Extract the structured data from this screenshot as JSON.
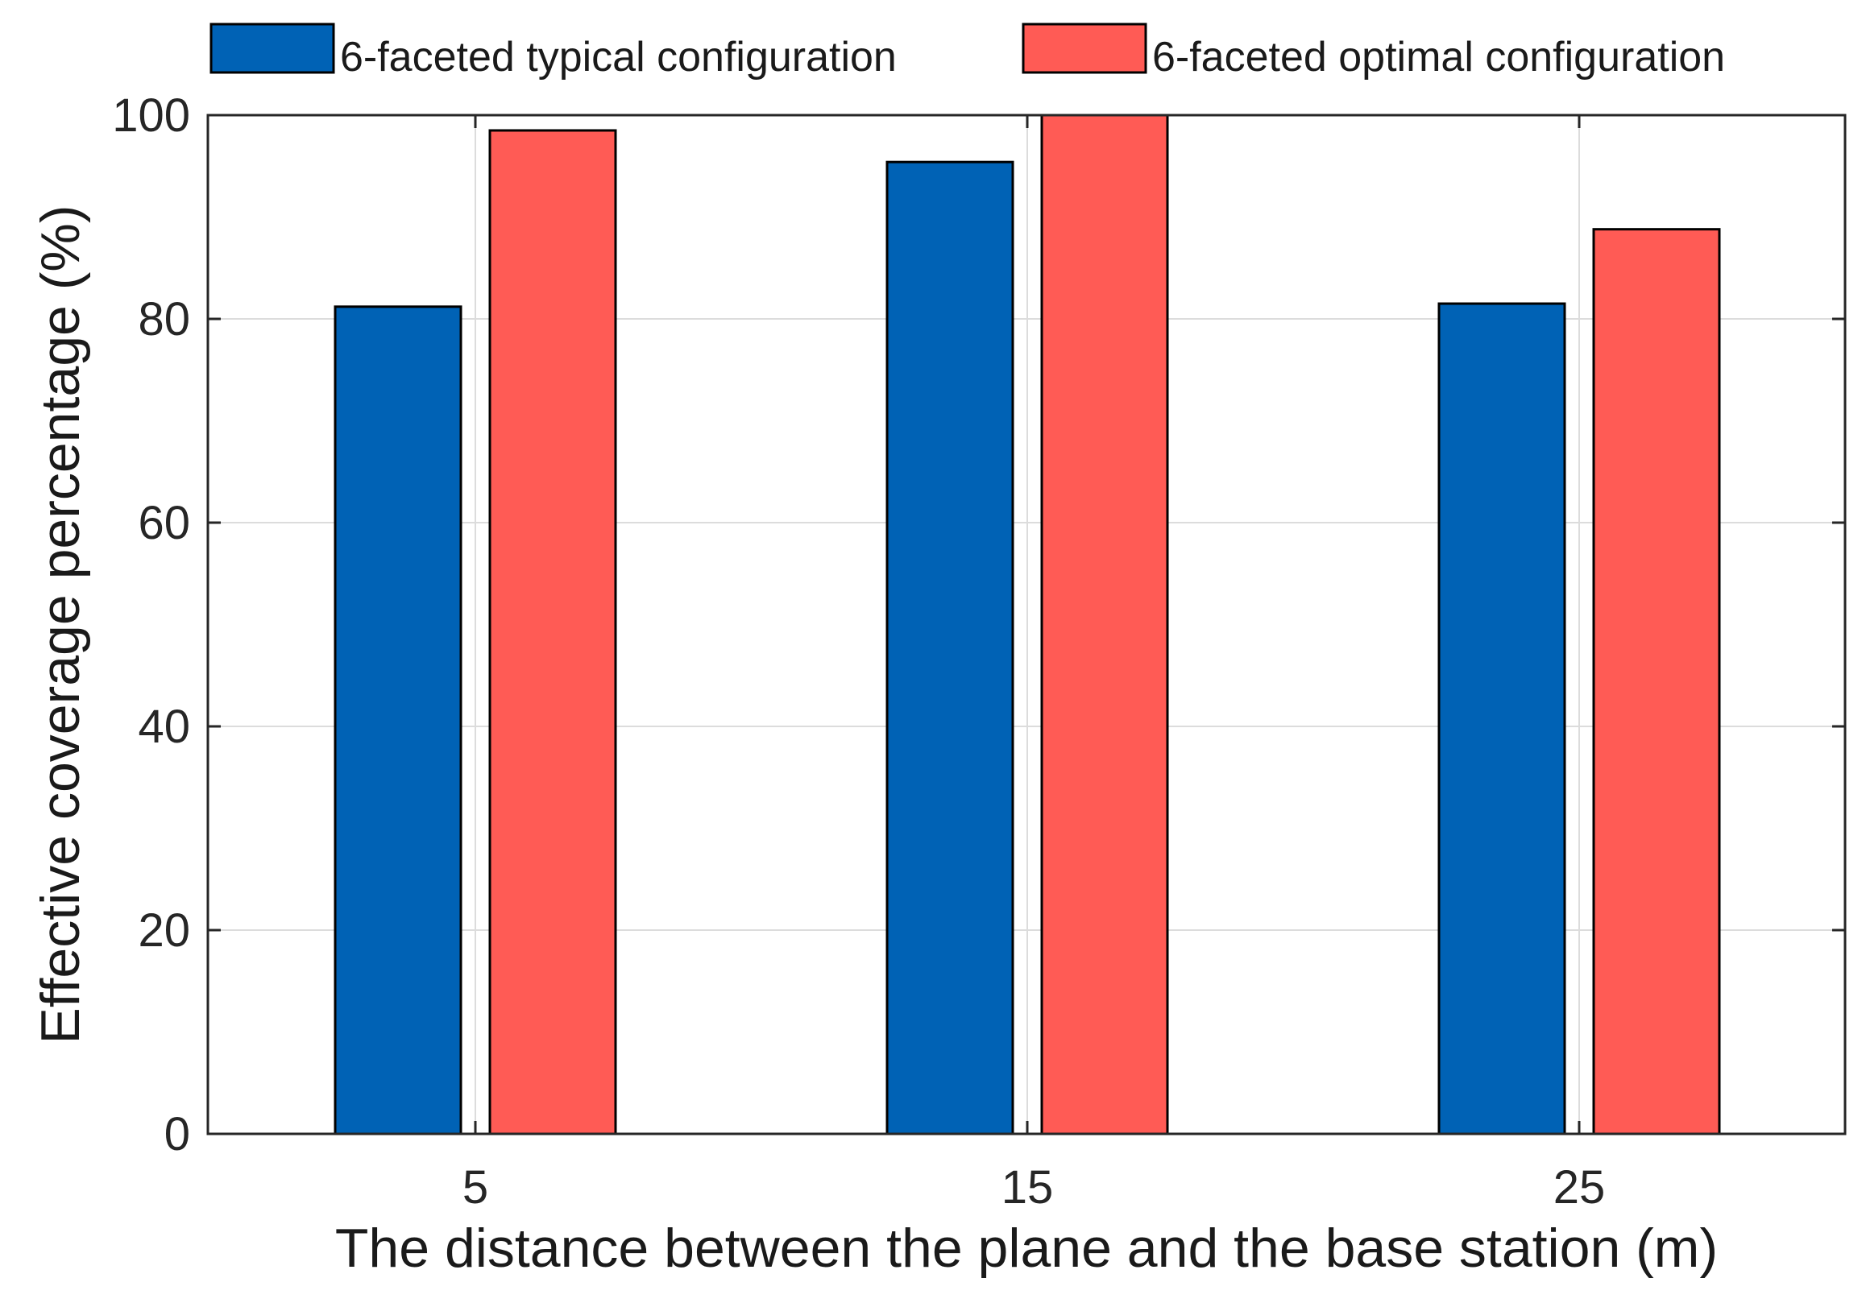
{
  "chart_data": {
    "type": "bar",
    "categories": [
      "5",
      "15",
      "25"
    ],
    "series": [
      {
        "name": "6-faceted typical configuration",
        "values": [
          81.2,
          95.4,
          81.5
        ],
        "color": "#0062B5"
      },
      {
        "name": "6-faceted optimal configuration",
        "values": [
          98.5,
          100,
          88.8
        ],
        "color": "#FF5B55"
      }
    ],
    "xlabel": "The distance between the plane and the base station (m)",
    "ylabel": "Effective coverage percentage (%)",
    "ylim": [
      0,
      100
    ],
    "yticks": [
      "0",
      "20",
      "40",
      "60",
      "80",
      "100"
    ],
    "grid": true,
    "legend_position": "top"
  }
}
